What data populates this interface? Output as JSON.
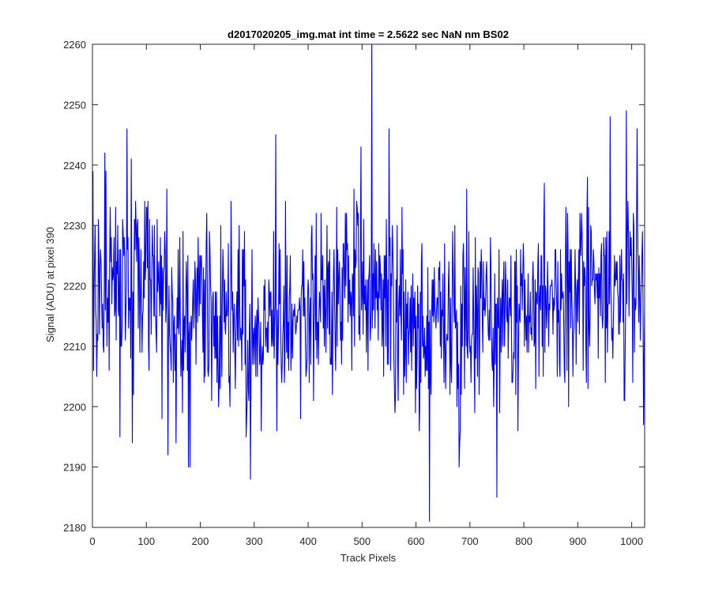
{
  "chart_data": {
    "type": "line",
    "title": "d2017020205_img.mat int time = 2.5622 sec  NaN nm BS02",
    "xlabel": "Track Pixels",
    "ylabel": "Signal (ADU) at pixel 390",
    "xlim": [
      0,
      1024
    ],
    "ylim": [
      2180,
      2260
    ],
    "xticks": [
      0,
      100,
      200,
      300,
      400,
      500,
      600,
      700,
      800,
      900,
      1000
    ],
    "yticks": [
      2180,
      2190,
      2200,
      2210,
      2220,
      2230,
      2240,
      2250,
      2260
    ],
    "grid": false,
    "line_color": "#0000ff",
    "series": [
      {
        "x_start": 1,
        "x_step": 1,
        "noise_sigma": 8,
        "baseline": [
          [
            0,
            2219
          ],
          [
            100,
            2220
          ],
          [
            200,
            2216
          ],
          [
            300,
            2213
          ],
          [
            400,
            2216
          ],
          [
            500,
            2220
          ],
          [
            600,
            2214
          ],
          [
            700,
            2213
          ],
          [
            800,
            2216
          ],
          [
            900,
            2219
          ],
          [
            1024,
            2222
          ]
        ],
        "notable_points": [
          [
            1,
            2239
          ],
          [
            72,
            2241
          ],
          [
            74,
            2194
          ],
          [
            178,
            2190
          ],
          [
            181,
            2190
          ],
          [
            293,
            2188
          ],
          [
            340,
            2245
          ],
          [
            518,
            2261
          ],
          [
            550,
            2246
          ],
          [
            625,
            2181
          ],
          [
            680,
            2190
          ],
          [
            750,
            2185
          ],
          [
            960,
            2248
          ],
          [
            990,
            2249
          ],
          [
            1010,
            2246
          ],
          [
            1020,
            2229
          ]
        ]
      }
    ]
  }
}
